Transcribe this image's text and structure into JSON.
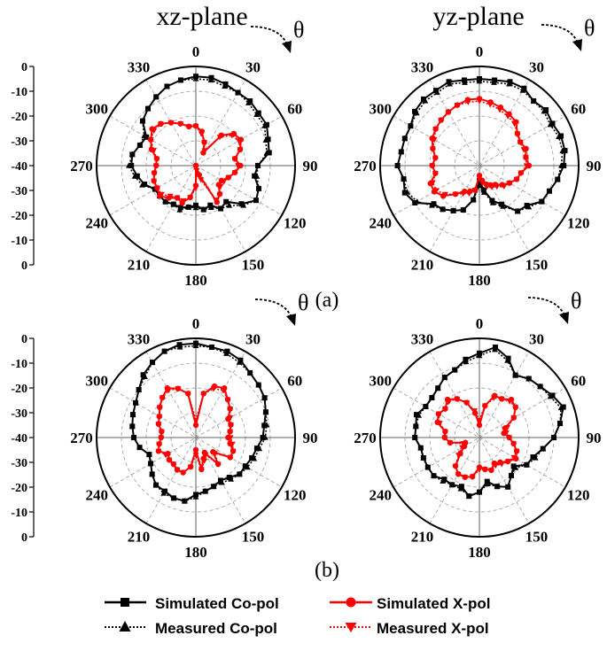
{
  "figure": {
    "column_titles": [
      "xz-plane",
      "yz-plane"
    ],
    "theta_symbol": "θ",
    "subfigure_labels": [
      "(a)",
      "(b)"
    ],
    "colors": {
      "copol": "#000000",
      "xpol": "#ff0000",
      "grid": "#9a9a9a"
    }
  },
  "legend": {
    "sim_co": "Simulated Co-pol",
    "sim_x": "Simulated X-pol",
    "meas_co": "Measured Co-pol",
    "meas_x": "Measured X-pol"
  },
  "chart_data": [
    {
      "type": "polar",
      "panel": "a-xz",
      "title": "xz-plane",
      "angle_labels": [
        "0",
        "30",
        "60",
        "90",
        "120",
        "150",
        "180",
        "210",
        "240",
        "270",
        "300",
        "330"
      ],
      "radial_ticks_top": [
        "0",
        "-10",
        "-20",
        "-30",
        "-40"
      ],
      "radial_ticks_bottom": [
        "-30",
        "-20",
        "-10",
        "0"
      ],
      "rlim_db": [
        -40,
        0
      ],
      "theta_step_deg": 10,
      "series": [
        {
          "name": "Simulated Co-pol",
          "marker": "square",
          "line": "solid",
          "color": "#000000",
          "values": [
            -4,
            -4,
            -5,
            -6,
            -6,
            -7,
            -7,
            -9,
            -10,
            -15,
            -16,
            -13,
            -12,
            -16,
            -21,
            -20,
            -23,
            -22,
            -24,
            -23,
            -22,
            -22,
            -21,
            -21,
            -21,
            -18,
            -16,
            -14,
            -14,
            -16,
            -17,
            -12,
            -10,
            -8,
            -6,
            -5
          ]
        },
        {
          "name": "Measured Co-pol",
          "marker": "triangle",
          "line": "dotted",
          "color": "#000000",
          "values": [
            -5,
            -5,
            -6,
            -6,
            -7,
            -8,
            -8,
            -10,
            -11,
            -15,
            -15,
            -13,
            -12,
            -15,
            -19,
            -20,
            -22,
            -22,
            -23,
            -23,
            -21,
            -22,
            -21,
            -21,
            -21,
            -17,
            -15,
            -13,
            -14,
            -16,
            -16,
            -12,
            -10,
            -8,
            -6,
            -5
          ]
        },
        {
          "name": "Simulated X-pol",
          "marker": "circle",
          "line": "solid",
          "color": "#ff0000",
          "values": [
            -24,
            -26,
            -30,
            -34,
            -24,
            -20,
            -19,
            -21,
            -24,
            -22,
            -24,
            -26,
            -28,
            -28,
            -25,
            -23,
            -36,
            -40,
            -32,
            -27,
            -24,
            -25,
            -23,
            -21,
            -22,
            -22,
            -23,
            -24,
            -24,
            -21,
            -19,
            -17,
            -18,
            -20,
            -22,
            -24
          ]
        },
        {
          "name": "Measured X-pol",
          "marker": "triangle-down",
          "line": "dotted",
          "color": "#ff0000",
          "values": [
            -24,
            -27,
            -30,
            -33,
            -25,
            -21,
            -20,
            -21,
            -24,
            -23,
            -24,
            -26,
            -27,
            -27,
            -25,
            -24,
            -34,
            -38,
            -31,
            -27,
            -25,
            -25,
            -24,
            -22,
            -22,
            -22,
            -23,
            -24,
            -24,
            -22,
            -19,
            -18,
            -18,
            -20,
            -22,
            -24
          ]
        }
      ]
    },
    {
      "type": "polar",
      "panel": "a-yz",
      "title": "yz-plane",
      "angle_labels": [
        "0",
        "30",
        "60",
        "90",
        "120",
        "150",
        "180",
        "210",
        "240",
        "270",
        "300",
        "330"
      ],
      "rlim_db": [
        -40,
        0
      ],
      "theta_step_deg": 10,
      "series": [
        {
          "name": "Simulated Co-pol",
          "marker": "square",
          "line": "solid",
          "color": "#000000",
          "values": [
            -5,
            -5,
            -4,
            -4,
            -6,
            -5,
            -6,
            -5,
            -5,
            -6,
            -8,
            -10,
            -11,
            -15,
            -16,
            -22,
            -25,
            -30,
            -34,
            -26,
            -21,
            -19,
            -17,
            -16,
            -10,
            -8,
            -9,
            -7,
            -8,
            -8,
            -8,
            -6,
            -5,
            -5,
            -4,
            -5
          ]
        },
        {
          "name": "Measured Co-pol",
          "marker": "triangle",
          "line": "dotted",
          "color": "#000000",
          "values": [
            -6,
            -6,
            -5,
            -5,
            -6,
            -6,
            -7,
            -6,
            -6,
            -7,
            -8,
            -10,
            -11,
            -14,
            -16,
            -21,
            -24,
            -29,
            -32,
            -26,
            -21,
            -19,
            -17,
            -15,
            -11,
            -9,
            -9,
            -7,
            -8,
            -8,
            -8,
            -7,
            -6,
            -6,
            -5,
            -6
          ]
        },
        {
          "name": "Simulated X-pol",
          "marker": "circle",
          "line": "solid",
          "color": "#ff0000",
          "values": [
            -13,
            -14,
            -15,
            -16,
            -17,
            -20,
            -21,
            -20,
            -21,
            -20,
            -23,
            -24,
            -26,
            -28,
            -30,
            -31,
            -32,
            -34,
            -36,
            -30,
            -29,
            -28,
            -25,
            -21,
            -19,
            -19,
            -22,
            -21,
            -22,
            -20,
            -18,
            -17,
            -16,
            -15,
            -14,
            -13
          ]
        },
        {
          "name": "Measured X-pol",
          "marker": "triangle-down",
          "line": "dotted",
          "color": "#ff0000",
          "values": [
            -14,
            -15,
            -16,
            -17,
            -18,
            -20,
            -21,
            -21,
            -21,
            -21,
            -23,
            -24,
            -26,
            -27,
            -29,
            -30,
            -31,
            -33,
            -35,
            -30,
            -28,
            -27,
            -25,
            -22,
            -20,
            -20,
            -22,
            -21,
            -22,
            -20,
            -19,
            -17,
            -16,
            -15,
            -14,
            -14
          ]
        }
      ]
    },
    {
      "type": "polar",
      "panel": "b-xz",
      "title": "xz-plane",
      "angle_labels": [
        "0",
        "30",
        "60",
        "90",
        "120",
        "150",
        "180",
        "210",
        "240",
        "270",
        "300",
        "330"
      ],
      "radial_ticks_top": [
        "0",
        "-10",
        "-20",
        "-30",
        "-40"
      ],
      "radial_ticks_bottom": [
        "-30",
        "-20",
        "-10",
        "0"
      ],
      "rlim_db": [
        -40,
        0
      ],
      "theta_step_deg": 10,
      "series": [
        {
          "name": "Simulated Co-pol",
          "marker": "square",
          "line": "solid",
          "color": "#000000",
          "values": [
            -2,
            -3,
            -3,
            -4,
            -6,
            -7,
            -8,
            -10,
            -12,
            -13,
            -15,
            -16,
            -17,
            -17,
            -19,
            -20,
            -19,
            -18,
            -17,
            -14,
            -14,
            -15,
            -15,
            -17,
            -19,
            -20,
            -17,
            -15,
            -14,
            -13,
            -12,
            -10,
            -7,
            -5,
            -3,
            -2
          ]
        },
        {
          "name": "Measured Co-pol",
          "marker": "triangle",
          "line": "dotted",
          "color": "#000000",
          "values": [
            -3,
            -3,
            -4,
            -5,
            -6,
            -7,
            -8,
            -10,
            -11,
            -12,
            -14,
            -15,
            -16,
            -17,
            -18,
            -19,
            -19,
            -18,
            -16,
            -14,
            -14,
            -14,
            -15,
            -17,
            -19,
            -20,
            -17,
            -15,
            -14,
            -13,
            -12,
            -10,
            -8,
            -5,
            -3,
            -3
          ]
        },
        {
          "name": "Simulated X-pol",
          "marker": "circle",
          "line": "solid",
          "color": "#ff0000",
          "values": [
            -35,
            -22,
            -18,
            -17,
            -20,
            -22,
            -25,
            -25,
            -26,
            -27,
            -26,
            -24,
            -24,
            -31,
            -26,
            -33,
            -31,
            -27,
            -35,
            -28,
            -25,
            -25,
            -26,
            -26,
            -27,
            -24,
            -25,
            -26,
            -26,
            -24,
            -23,
            -21,
            -19,
            -17,
            -19,
            -22
          ]
        },
        {
          "name": "Measured X-pol",
          "marker": "triangle-down",
          "line": "dotted",
          "color": "#ff0000",
          "values": [
            -33,
            -22,
            -19,
            -18,
            -20,
            -22,
            -24,
            -25,
            -26,
            -26,
            -25,
            -24,
            -24,
            -30,
            -26,
            -32,
            -30,
            -27,
            -33,
            -28,
            -25,
            -25,
            -26,
            -26,
            -26,
            -24,
            -25,
            -26,
            -26,
            -24,
            -23,
            -21,
            -19,
            -18,
            -19,
            -22
          ]
        }
      ]
    },
    {
      "type": "polar",
      "panel": "b-yz",
      "title": "yz-plane",
      "angle_labels": [
        "0",
        "30",
        "60",
        "90",
        "120",
        "150",
        "180",
        "210",
        "240",
        "270",
        "300",
        "330"
      ],
      "rlim_db": [
        -40,
        0
      ],
      "theta_step_deg": 10,
      "series": [
        {
          "name": "Simulated Co-pol",
          "marker": "square",
          "line": "solid",
          "color": "#000000",
          "values": [
            -6,
            -3,
            -6,
            -11,
            -9,
            -8,
            -6,
            -4,
            -7,
            -10,
            -14,
            -17,
            -18,
            -22,
            -20,
            -17,
            -19,
            -22,
            -18,
            -16,
            -19,
            -18,
            -18,
            -16,
            -16,
            -16,
            -16,
            -14,
            -14,
            -13,
            -15,
            -15,
            -14,
            -12,
            -11,
            -8
          ]
        },
        {
          "name": "Measured Co-pol",
          "marker": "triangle",
          "line": "dotted",
          "color": "#000000",
          "values": [
            -7,
            -4,
            -7,
            -11,
            -9,
            -8,
            -7,
            -5,
            -7,
            -10,
            -14,
            -16,
            -18,
            -21,
            -20,
            -17,
            -19,
            -21,
            -18,
            -16,
            -18,
            -18,
            -17,
            -16,
            -16,
            -16,
            -16,
            -14,
            -14,
            -14,
            -15,
            -15,
            -14,
            -12,
            -11,
            -9
          ]
        },
        {
          "name": "Simulated X-pol",
          "marker": "circle",
          "line": "solid",
          "color": "#ff0000",
          "values": [
            -35,
            -27,
            -22,
            -22,
            -20,
            -21,
            -24,
            -29,
            -30,
            -28,
            -26,
            -24,
            -23,
            -25,
            -27,
            -28,
            -26,
            -27,
            -28,
            -24,
            -23,
            -23,
            -25,
            -30,
            -33,
            -34,
            -28,
            -26,
            -26,
            -22,
            -21,
            -22,
            -20,
            -22,
            -25,
            -30
          ]
        },
        {
          "name": "Measured X-pol",
          "marker": "triangle-down",
          "line": "dotted",
          "color": "#ff0000",
          "values": [
            -33,
            -27,
            -23,
            -22,
            -21,
            -21,
            -24,
            -28,
            -29,
            -28,
            -26,
            -24,
            -24,
            -25,
            -26,
            -27,
            -26,
            -27,
            -27,
            -24,
            -23,
            -23,
            -25,
            -29,
            -32,
            -33,
            -28,
            -26,
            -26,
            -23,
            -21,
            -22,
            -21,
            -22,
            -25,
            -29
          ]
        }
      ]
    }
  ]
}
